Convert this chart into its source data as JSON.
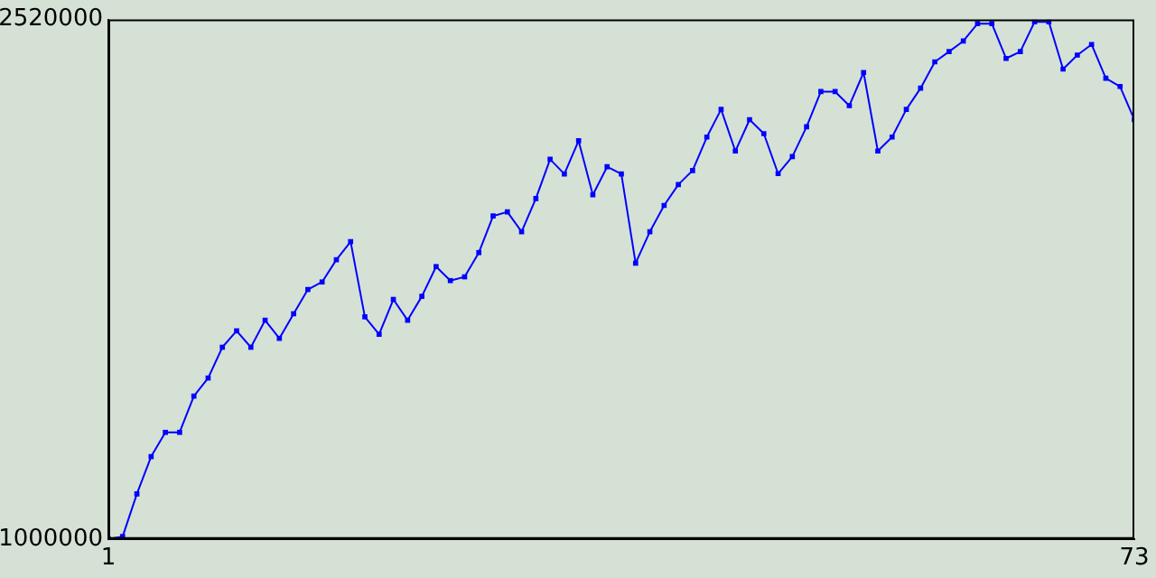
{
  "chart_data": {
    "type": "line",
    "xlim": [
      1,
      73
    ],
    "xticks": [
      1,
      73
    ],
    "ylim": [
      1000000,
      2520000
    ],
    "yticks": [
      1000000,
      2520000
    ],
    "grid": false,
    "legend": false,
    "marker": "square",
    "line_style": "solid",
    "x": [
      1,
      2,
      3,
      4,
      5,
      6,
      7,
      8,
      9,
      10,
      11,
      12,
      13,
      14,
      15,
      16,
      17,
      18,
      19,
      20,
      21,
      22,
      23,
      24,
      25,
      26,
      27,
      28,
      29,
      30,
      31,
      32,
      33,
      34,
      35,
      36,
      37,
      38,
      39,
      40,
      41,
      42,
      43,
      44,
      45,
      46,
      47,
      48,
      49,
      50,
      51,
      52,
      53,
      54,
      55,
      56,
      57,
      58,
      59,
      60,
      61,
      62,
      63,
      64,
      65,
      66,
      67,
      68,
      69,
      70,
      71,
      72,
      73
    ],
    "series": [
      {
        "color": "#0000ff",
        "values": [
          1000000,
          1007000,
          1132000,
          1241000,
          1312000,
          1312000,
          1418000,
          1471000,
          1561000,
          1609000,
          1561000,
          1640000,
          1587000,
          1659000,
          1730000,
          1752000,
          1817000,
          1870000,
          1650000,
          1599000,
          1701000,
          1640000,
          1710000,
          1797000,
          1756000,
          1767000,
          1838000,
          1945000,
          1957000,
          1899000,
          1996000,
          2111000,
          2068000,
          2165000,
          2007000,
          2089000,
          2068000,
          1807000,
          1899000,
          1976000,
          2037000,
          2078000,
          2176000,
          2257000,
          2135000,
          2227000,
          2186000,
          2069000,
          2119000,
          2206000,
          2309000,
          2309000,
          2268000,
          2365000,
          2135000,
          2176000,
          2257000,
          2319000,
          2396000,
          2426000,
          2457000,
          2508000,
          2508000,
          2406000,
          2426000,
          2513000,
          2513000,
          2375000,
          2416000,
          2447000,
          2348000,
          2324000,
          2227000
        ]
      }
    ]
  }
}
